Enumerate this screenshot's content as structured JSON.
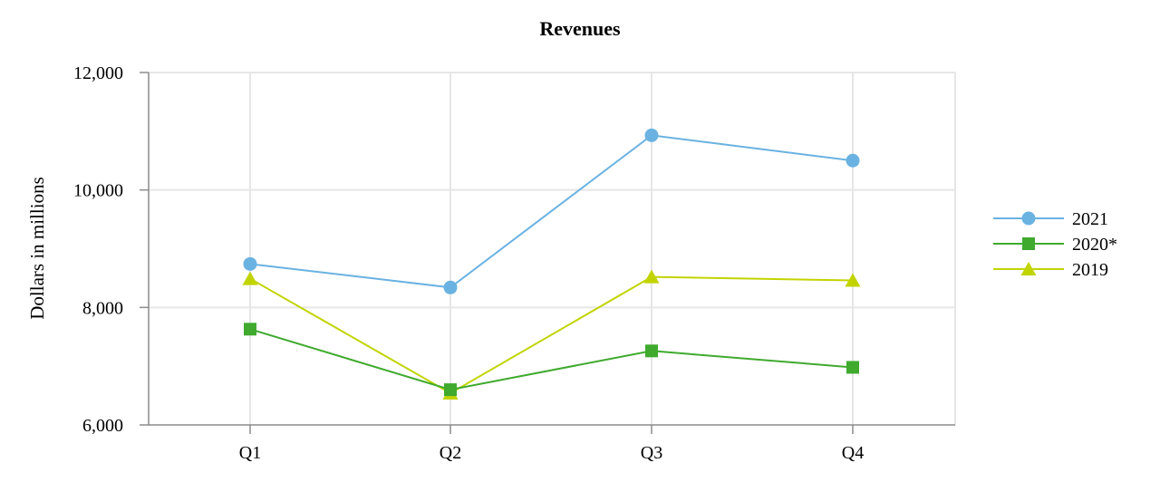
{
  "chart_data": {
    "type": "line",
    "title": "Revenues",
    "xlabel": "",
    "ylabel": "Dollars in millions",
    "categories": [
      "Q1",
      "Q2",
      "Q3",
      "Q4"
    ],
    "ylim": [
      6000,
      12000
    ],
    "yticks": [
      6000,
      8000,
      10000,
      12000
    ],
    "ytick_labels": [
      "6,000",
      "8,000",
      "10,000",
      "12,000"
    ],
    "grid": true,
    "legend_position": "right",
    "series": [
      {
        "name": "2021",
        "values": [
          8740,
          8340,
          10930,
          10500
        ],
        "color": "#6ab2e2",
        "marker": "circle"
      },
      {
        "name": "2020*",
        "values": [
          7630,
          6600,
          7260,
          6980
        ],
        "color": "#3faa2e",
        "marker": "square"
      },
      {
        "name": "2019",
        "values": [
          8490,
          6540,
          8520,
          8460
        ],
        "color": "#c2d400",
        "marker": "triangle"
      }
    ]
  }
}
